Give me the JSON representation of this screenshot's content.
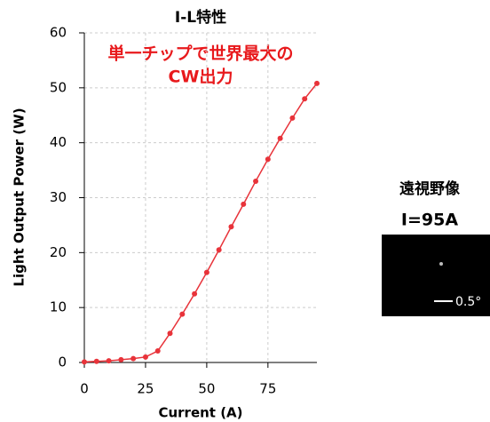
{
  "chart_data": {
    "type": "line",
    "title": "I-L特性",
    "annotation": [
      "単一チップで世界最大の",
      "CW出力"
    ],
    "x_label": "Current (A)",
    "y_label": "Light Output Power (W)",
    "x": [
      0,
      5,
      10,
      15,
      20,
      25,
      30,
      35,
      40,
      45,
      50,
      55,
      60,
      65,
      70,
      75,
      80,
      85,
      90,
      95
    ],
    "series": [
      {
        "color": "#e8333a",
        "values": [
          0.1,
          0.2,
          0.3,
          0.5,
          0.7,
          1.0,
          2.1,
          5.3,
          8.8,
          12.5,
          16.4,
          20.5,
          24.7,
          28.8,
          33.0,
          37.0,
          40.8,
          44.5,
          48.0,
          50.8
        ]
      }
    ],
    "xlim": [
      0,
      95
    ],
    "xticks": [
      0,
      25,
      50,
      75
    ],
    "ylim": [
      0,
      60
    ],
    "yticks": [
      0,
      10,
      20,
      30,
      40,
      50,
      60
    ],
    "grid": true
  },
  "inset": {
    "title": "遠視野像",
    "condition": "I=95A",
    "scale_label": "0.5°"
  }
}
